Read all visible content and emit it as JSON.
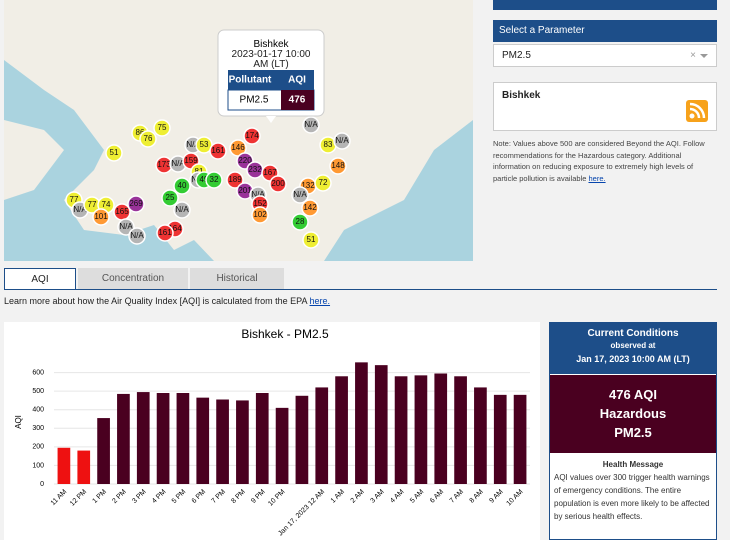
{
  "map": {
    "popup": {
      "city": "Bishkek",
      "time": "2023-01-17 10:00 AM (LT)",
      "col_pollutant": "Pollutant",
      "col_aqi": "AQI",
      "pollutant": "PM2.5",
      "aqi": "476"
    },
    "markers": [
      "75",
      "86",
      "76",
      "51",
      "N/A",
      "53",
      "161",
      "174",
      "146",
      "N/A",
      "83",
      "N/A",
      "148",
      "173",
      "N/A",
      "159",
      "81",
      "220",
      "232",
      "167",
      "N/A",
      "49",
      "32",
      "40",
      "189",
      "200",
      "132",
      "N/A",
      "72",
      "201",
      "N/A",
      "152",
      "142",
      "25",
      "N/A",
      "77",
      "N/A",
      "77",
      "74",
      "101",
      "165",
      "269",
      "N/A",
      "N/A",
      "102",
      "164",
      "161",
      "28",
      "51"
    ]
  },
  "side": {
    "select_header": "Select a Parameter",
    "select_value": "PM2.5",
    "clear": "×",
    "site": "Bishkek",
    "note": "Note: Values above 500 are considered Beyond the AQI. Follow recommendations for the Hazardous category. Additional information on reducing exposure to extremely high levels of particle pollution is available",
    "note_link": "here."
  },
  "tabs": [
    "AQI",
    "Concentration",
    "Historical"
  ],
  "learn": {
    "text": "Learn more about how the Air Quality Index [AQI] is calculated from the EPA",
    "link": "here."
  },
  "chart_data": {
    "type": "bar",
    "title": "Bishkek - PM2.5",
    "y_label": "AQI",
    "categories": [
      "11 AM",
      "12 PM",
      "1 PM",
      "2 PM",
      "3 PM",
      "4 PM",
      "5 PM",
      "6 PM",
      "7 PM",
      "8 PM",
      "9 PM",
      "10 PM",
      null,
      "Jan 17, 2023 12 AM",
      "1 AM",
      "2 AM",
      "3 AM",
      "4 AM",
      "5 AM",
      "6 AM",
      "7 AM",
      "8 AM",
      "9 AM",
      "10 AM"
    ],
    "values": [
      195,
      180,
      355,
      485,
      495,
      490,
      490,
      465,
      455,
      450,
      490,
      410,
      475,
      520,
      580,
      655,
      640,
      580,
      585,
      595,
      580,
      520,
      480,
      480
    ],
    "colors": [
      "#ee1111",
      "#ee1111",
      "#4a0020",
      "#4a0020",
      "#4a0020",
      "#4a0020",
      "#4a0020",
      "#4a0020",
      "#4a0020",
      "#4a0020",
      "#4a0020",
      "#4a0020",
      "#4a0020",
      "#4a0020",
      "#4a0020",
      "#4a0020",
      "#4a0020",
      "#4a0020",
      "#4a0020",
      "#4a0020",
      "#4a0020",
      "#4a0020",
      "#4a0020",
      "#4a0020"
    ],
    "ylim": [
      0,
      700
    ],
    "yticks": [
      0,
      100,
      200,
      300,
      400,
      500,
      600
    ],
    "grid": true
  },
  "current": {
    "title": "Current Conditions",
    "observed": "observed at",
    "time": "Jan 17, 2023 10:00 AM (LT)",
    "aqi": "476 AQI",
    "category": "Hazardous",
    "pollutant": "PM2.5",
    "health_title": "Health Message",
    "health_text": "AQI values over 300 trigger health warnings of emergency conditions. The entire population is even more likely to be affected by serious health effects."
  }
}
